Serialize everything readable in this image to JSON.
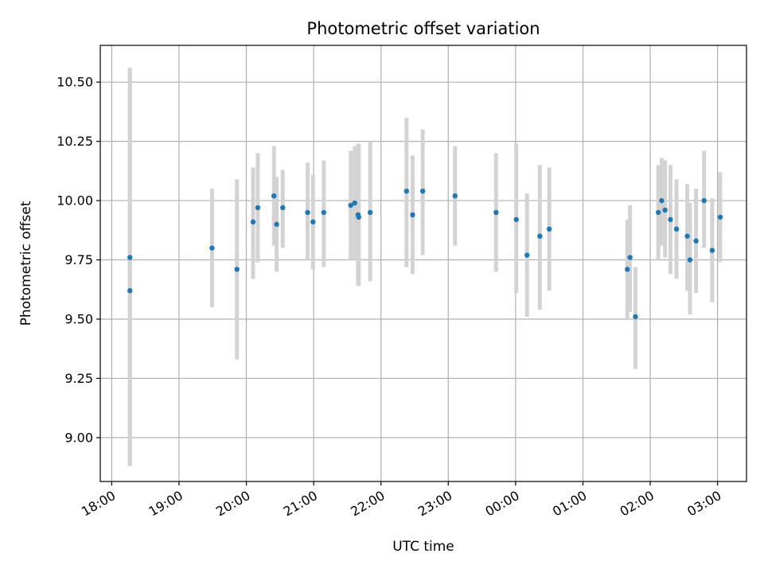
{
  "chart_data": {
    "type": "scatter",
    "title": "Photometric offset variation",
    "xlabel": "UTC time",
    "ylabel": "Photometric offset",
    "x_unit": "hours since 18:00 UTC",
    "xlim": [
      -0.17,
      9.43
    ],
    "ylim": [
      8.815,
      10.655
    ],
    "grid": true,
    "x_ticks": [
      {
        "v": 0,
        "label": "18:00"
      },
      {
        "v": 1,
        "label": "19:00"
      },
      {
        "v": 2,
        "label": "20:00"
      },
      {
        "v": 3,
        "label": "21:00"
      },
      {
        "v": 4,
        "label": "22:00"
      },
      {
        "v": 5,
        "label": "23:00"
      },
      {
        "v": 6,
        "label": "00:00"
      },
      {
        "v": 7,
        "label": "01:00"
      },
      {
        "v": 8,
        "label": "02:00"
      },
      {
        "v": 9,
        "label": "03:00"
      }
    ],
    "y_ticks": [
      {
        "v": 9.0,
        "label": "9.00"
      },
      {
        "v": 9.25,
        "label": "9.25"
      },
      {
        "v": 9.5,
        "label": "9.50"
      },
      {
        "v": 9.75,
        "label": "9.75"
      },
      {
        "v": 10.0,
        "label": "10.00"
      },
      {
        "v": 10.25,
        "label": "10.25"
      },
      {
        "v": 10.5,
        "label": "10.50"
      }
    ],
    "colors": {
      "point": "#1f77b4",
      "errorbar": "#d3d3d3",
      "grid": "#b0b0b0"
    },
    "points": [
      {
        "x": 0.27,
        "y": 9.62,
        "lo": 8.88,
        "hi": 10.56
      },
      {
        "x": 0.27,
        "y": 9.76,
        "lo": 8.88,
        "hi": 10.56
      },
      {
        "x": 1.49,
        "y": 9.8,
        "lo": 9.55,
        "hi": 10.05
      },
      {
        "x": 1.86,
        "y": 9.71,
        "lo": 9.33,
        "hi": 10.09
      },
      {
        "x": 2.1,
        "y": 9.91,
        "lo": 9.67,
        "hi": 10.14
      },
      {
        "x": 2.17,
        "y": 9.97,
        "lo": 9.74,
        "hi": 10.2
      },
      {
        "x": 2.41,
        "y": 10.02,
        "lo": 9.81,
        "hi": 10.23
      },
      {
        "x": 2.45,
        "y": 9.9,
        "lo": 9.7,
        "hi": 10.1
      },
      {
        "x": 2.54,
        "y": 9.97,
        "lo": 9.8,
        "hi": 10.13
      },
      {
        "x": 2.91,
        "y": 9.95,
        "lo": 9.75,
        "hi": 10.16
      },
      {
        "x": 2.99,
        "y": 9.91,
        "lo": 9.71,
        "hi": 10.11
      },
      {
        "x": 3.15,
        "y": 9.95,
        "lo": 9.72,
        "hi": 10.17
      },
      {
        "x": 3.55,
        "y": 9.98,
        "lo": 9.75,
        "hi": 10.21
      },
      {
        "x": 3.61,
        "y": 9.99,
        "lo": 9.75,
        "hi": 10.23
      },
      {
        "x": 3.66,
        "y": 9.94,
        "lo": 9.64,
        "hi": 10.24
      },
      {
        "x": 3.67,
        "y": 9.93,
        "lo": 9.64,
        "hi": 10.24
      },
      {
        "x": 3.84,
        "y": 9.95,
        "lo": 9.66,
        "hi": 10.25
      },
      {
        "x": 4.38,
        "y": 10.04,
        "lo": 9.72,
        "hi": 10.35
      },
      {
        "x": 4.47,
        "y": 9.94,
        "lo": 9.69,
        "hi": 10.19
      },
      {
        "x": 4.62,
        "y": 10.04,
        "lo": 9.77,
        "hi": 10.3
      },
      {
        "x": 5.1,
        "y": 10.02,
        "lo": 9.81,
        "hi": 10.23
      },
      {
        "x": 5.71,
        "y": 9.95,
        "lo": 9.7,
        "hi": 10.2
      },
      {
        "x": 6.01,
        "y": 9.92,
        "lo": 9.61,
        "hi": 10.24
      },
      {
        "x": 6.17,
        "y": 9.77,
        "lo": 9.51,
        "hi": 10.03
      },
      {
        "x": 6.36,
        "y": 9.85,
        "lo": 9.54,
        "hi": 10.15
      },
      {
        "x": 6.5,
        "y": 9.88,
        "lo": 9.62,
        "hi": 10.14
      },
      {
        "x": 7.66,
        "y": 9.71,
        "lo": 9.5,
        "hi": 9.92
      },
      {
        "x": 7.7,
        "y": 9.76,
        "lo": 9.53,
        "hi": 9.98
      },
      {
        "x": 7.78,
        "y": 9.51,
        "lo": 9.29,
        "hi": 9.72
      },
      {
        "x": 8.12,
        "y": 9.95,
        "lo": 9.75,
        "hi": 10.15
      },
      {
        "x": 8.17,
        "y": 10.0,
        "lo": 9.81,
        "hi": 10.18
      },
      {
        "x": 8.22,
        "y": 9.96,
        "lo": 9.76,
        "hi": 10.17
      },
      {
        "x": 8.3,
        "y": 9.92,
        "lo": 9.69,
        "hi": 10.15
      },
      {
        "x": 8.39,
        "y": 9.88,
        "lo": 9.67,
        "hi": 10.09
      },
      {
        "x": 8.55,
        "y": 9.85,
        "lo": 9.62,
        "hi": 10.07
      },
      {
        "x": 8.59,
        "y": 9.75,
        "lo": 9.52,
        "hi": 9.99
      },
      {
        "x": 8.68,
        "y": 9.83,
        "lo": 9.61,
        "hi": 10.05
      },
      {
        "x": 8.8,
        "y": 10.0,
        "lo": 9.8,
        "hi": 10.21
      },
      {
        "x": 8.92,
        "y": 9.79,
        "lo": 9.57,
        "hi": 10.01
      },
      {
        "x": 9.04,
        "y": 9.93,
        "lo": 9.74,
        "hi": 10.12
      }
    ]
  }
}
